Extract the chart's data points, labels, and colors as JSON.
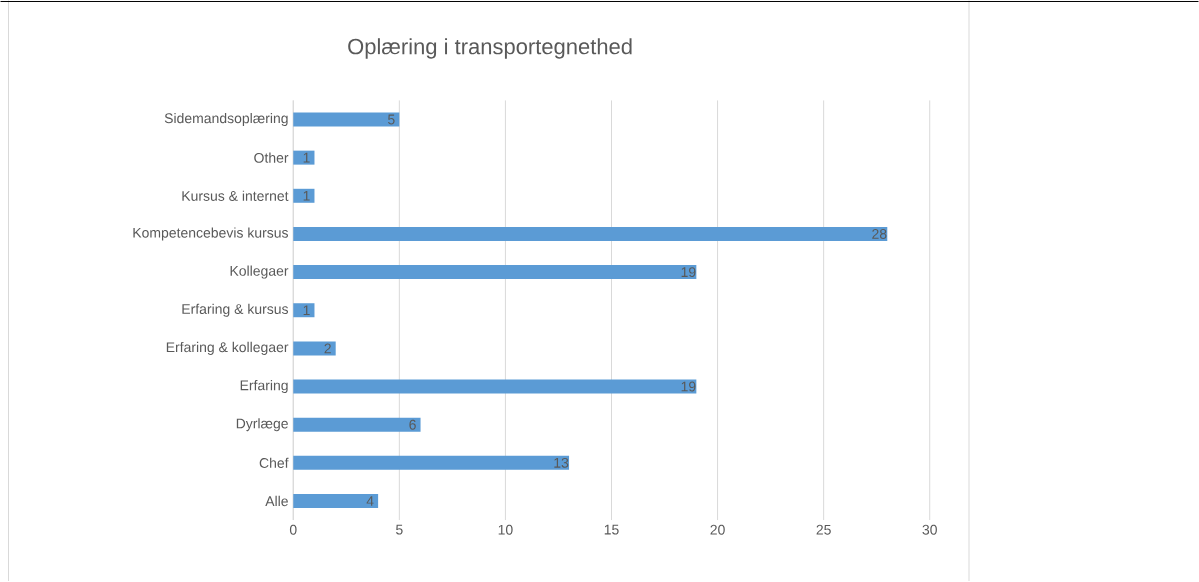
{
  "chart_data": {
    "type": "bar",
    "orientation": "horizontal",
    "title": "Oplæring i transportegnethed",
    "categories": [
      "Sidemandsoplæring",
      "Other",
      "Kursus & internet",
      "Kompetencebevis kursus",
      "Kollegaer",
      "Erfaring & kursus",
      "Erfaring & kollegaer",
      "Erfaring",
      "Dyrlæge",
      "Chef",
      "Alle"
    ],
    "values": [
      5,
      1,
      1,
      28,
      19,
      1,
      2,
      19,
      6,
      13,
      4
    ],
    "color": "#5b9bd5",
    "xlim": [
      0,
      30
    ],
    "xticks": [
      0,
      5,
      10,
      15,
      20,
      25,
      30
    ],
    "grid": "x",
    "data_labels": true
  }
}
